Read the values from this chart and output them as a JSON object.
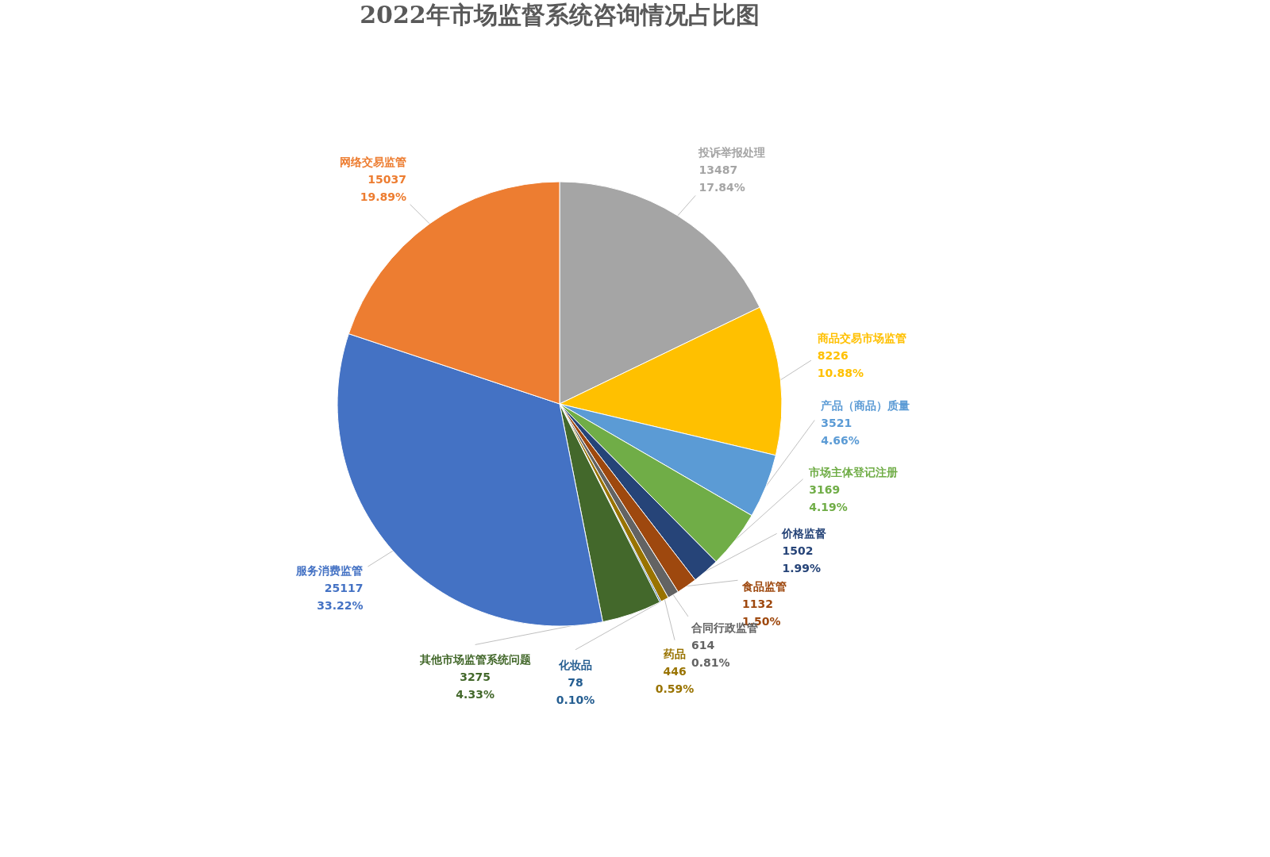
{
  "chart_data": {
    "type": "pie",
    "title": "2022年市场监督系统咨询情况占比图",
    "categories": [
      "投诉举报处理",
      "商品交易市场监管",
      "产品（商品）质量",
      "市场主体登记注册",
      "价格监督",
      "食品监管",
      "合同行政监管",
      "药品",
      "化妆品",
      "其他市场监管系统问题",
      "服务消费监管",
      "网络交易监管"
    ],
    "values": [
      13487,
      8226,
      3521,
      3169,
      1502,
      1132,
      614,
      446,
      78,
      3275,
      25117,
      15037
    ],
    "colors": [
      "#a5a5a5",
      "#ffc000",
      "#5b9bd5",
      "#70ad47",
      "#264478",
      "#9e480e",
      "#636363",
      "#997300",
      "#255e91",
      "#43682b",
      "#4472c4",
      "#ed7d31"
    ],
    "value_labels": [
      "13487\n17.84%",
      "8226\n10.88%",
      "3521\n4.66%",
      "3169\n4.19%",
      "1502\n1.99%",
      "1132\n1.50%",
      "614\n0.81%",
      "446\n0.59%",
      "78\n0.10%",
      "3275\n4.33%",
      "25117\n33.22%",
      "15037\n19.89%"
    ]
  }
}
